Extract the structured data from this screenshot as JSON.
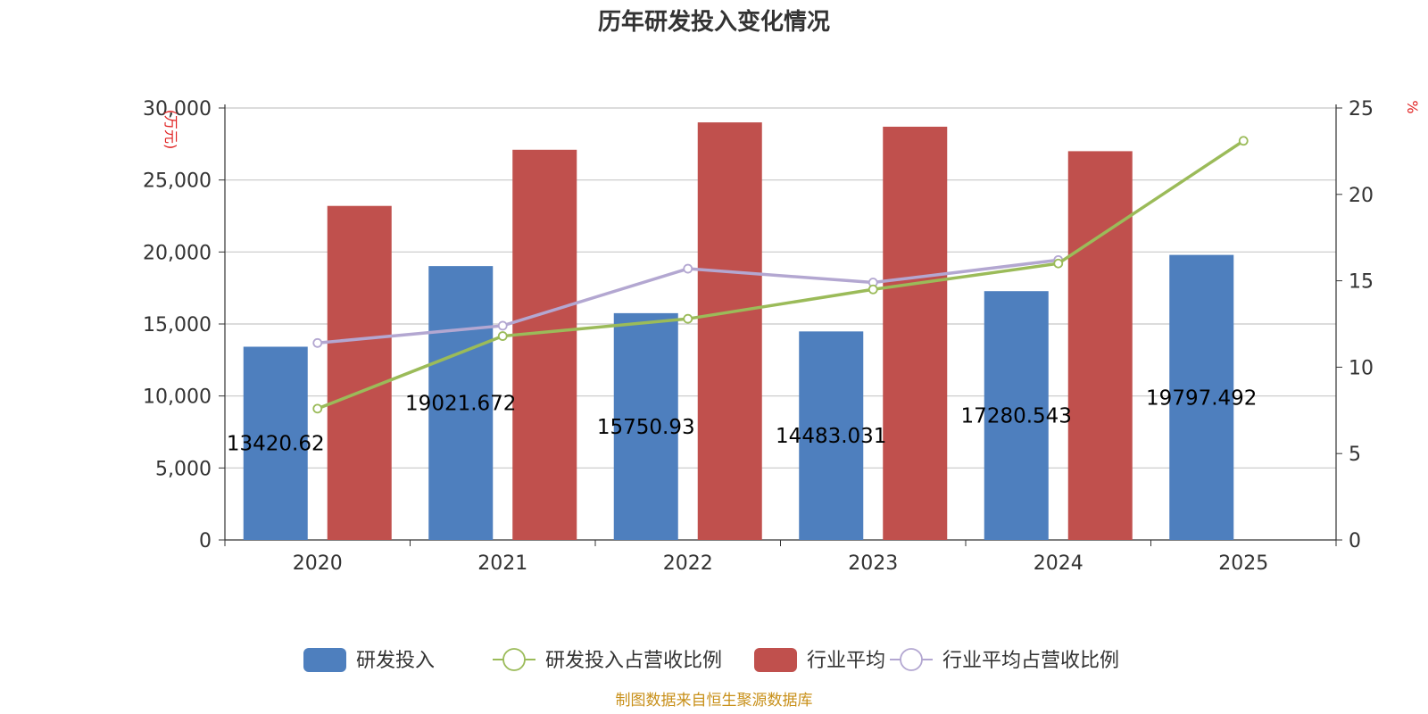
{
  "chart_data": {
    "type": "bar",
    "title": "历年研发投入变化情况",
    "categories": [
      "2020",
      "2021",
      "2022",
      "2023",
      "2024",
      "2025"
    ],
    "left_axis": {
      "unit": "万元",
      "ylim": [
        0,
        30000
      ],
      "ticks": [
        "0",
        "5,000",
        "10,000",
        "15,000",
        "20,000",
        "25,000",
        "30,000"
      ]
    },
    "right_axis": {
      "unit": "%",
      "ylim": [
        0,
        25
      ],
      "ticks": [
        "0",
        "5",
        "10",
        "15",
        "20",
        "25"
      ]
    },
    "grid": true,
    "legend_position": "bottom",
    "series": [
      {
        "name": "研发投入",
        "kind": "bar",
        "axis": "left",
        "color": "#4e7fbe",
        "values": [
          13420.62,
          19021.672,
          15750.93,
          14483.031,
          17280.543,
          19797.492
        ],
        "labels": [
          "13420.62",
          "19021.672",
          "15750.93",
          "14483.031",
          "17280.543",
          "19797.492"
        ]
      },
      {
        "name": "研发投入占营收比例",
        "kind": "line",
        "axis": "right",
        "color": "#9bbb59",
        "values": [
          7.6,
          11.8,
          12.8,
          14.5,
          16.0,
          23.1
        ]
      },
      {
        "name": "行业平均",
        "kind": "bar",
        "axis": "left",
        "color": "#c0504d",
        "values": [
          23200,
          27100,
          29000,
          28700,
          27000,
          null
        ]
      },
      {
        "name": "行业平均占营收比例",
        "kind": "line",
        "axis": "right",
        "color": "#b3a7d1",
        "values": [
          11.4,
          12.4,
          15.7,
          14.9,
          16.2,
          null
        ]
      }
    ]
  },
  "footer": {
    "source": "制图数据来自恒生聚源数据库"
  }
}
